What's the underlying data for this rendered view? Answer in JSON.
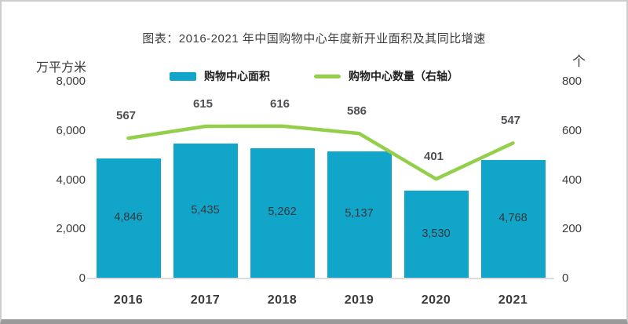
{
  "chart_data": {
    "type": "bar",
    "title": "图表：2016-2021 年中国购物中心年度新开业面积及其同比增速",
    "categories": [
      "2016",
      "2017",
      "2018",
      "2019",
      "2020",
      "2021"
    ],
    "series": [
      {
        "name": "购物中心面积",
        "type": "bar",
        "axis": "left",
        "values": [
          4846,
          5435,
          5262,
          5137,
          3530,
          4768
        ],
        "value_labels": [
          "4,846",
          "5,435",
          "5,262",
          "5,137",
          "3,530",
          "4,768"
        ],
        "color": "#11A5CA"
      },
      {
        "name": "购物中心数量（右轴）",
        "type": "line",
        "axis": "right",
        "values": [
          567,
          615,
          616,
          586,
          401,
          547
        ],
        "value_labels": [
          "567",
          "615",
          "616",
          "586",
          "401",
          "547"
        ],
        "color": "#94CF4C"
      }
    ],
    "left_axis": {
      "unit": "万平方米",
      "min": 0,
      "max": 8000,
      "ticks": [
        8000,
        6000,
        4000,
        2000,
        0
      ],
      "tick_labels": [
        "8,000",
        "6,000",
        "4,000",
        "2,000",
        "0"
      ]
    },
    "right_axis": {
      "unit": "个",
      "min": 0,
      "max": 800,
      "ticks": [
        800,
        600,
        400,
        200,
        0
      ],
      "tick_labels": [
        "800",
        "600",
        "400",
        "200",
        "0"
      ]
    },
    "legend_position": "top",
    "grid": "off"
  }
}
